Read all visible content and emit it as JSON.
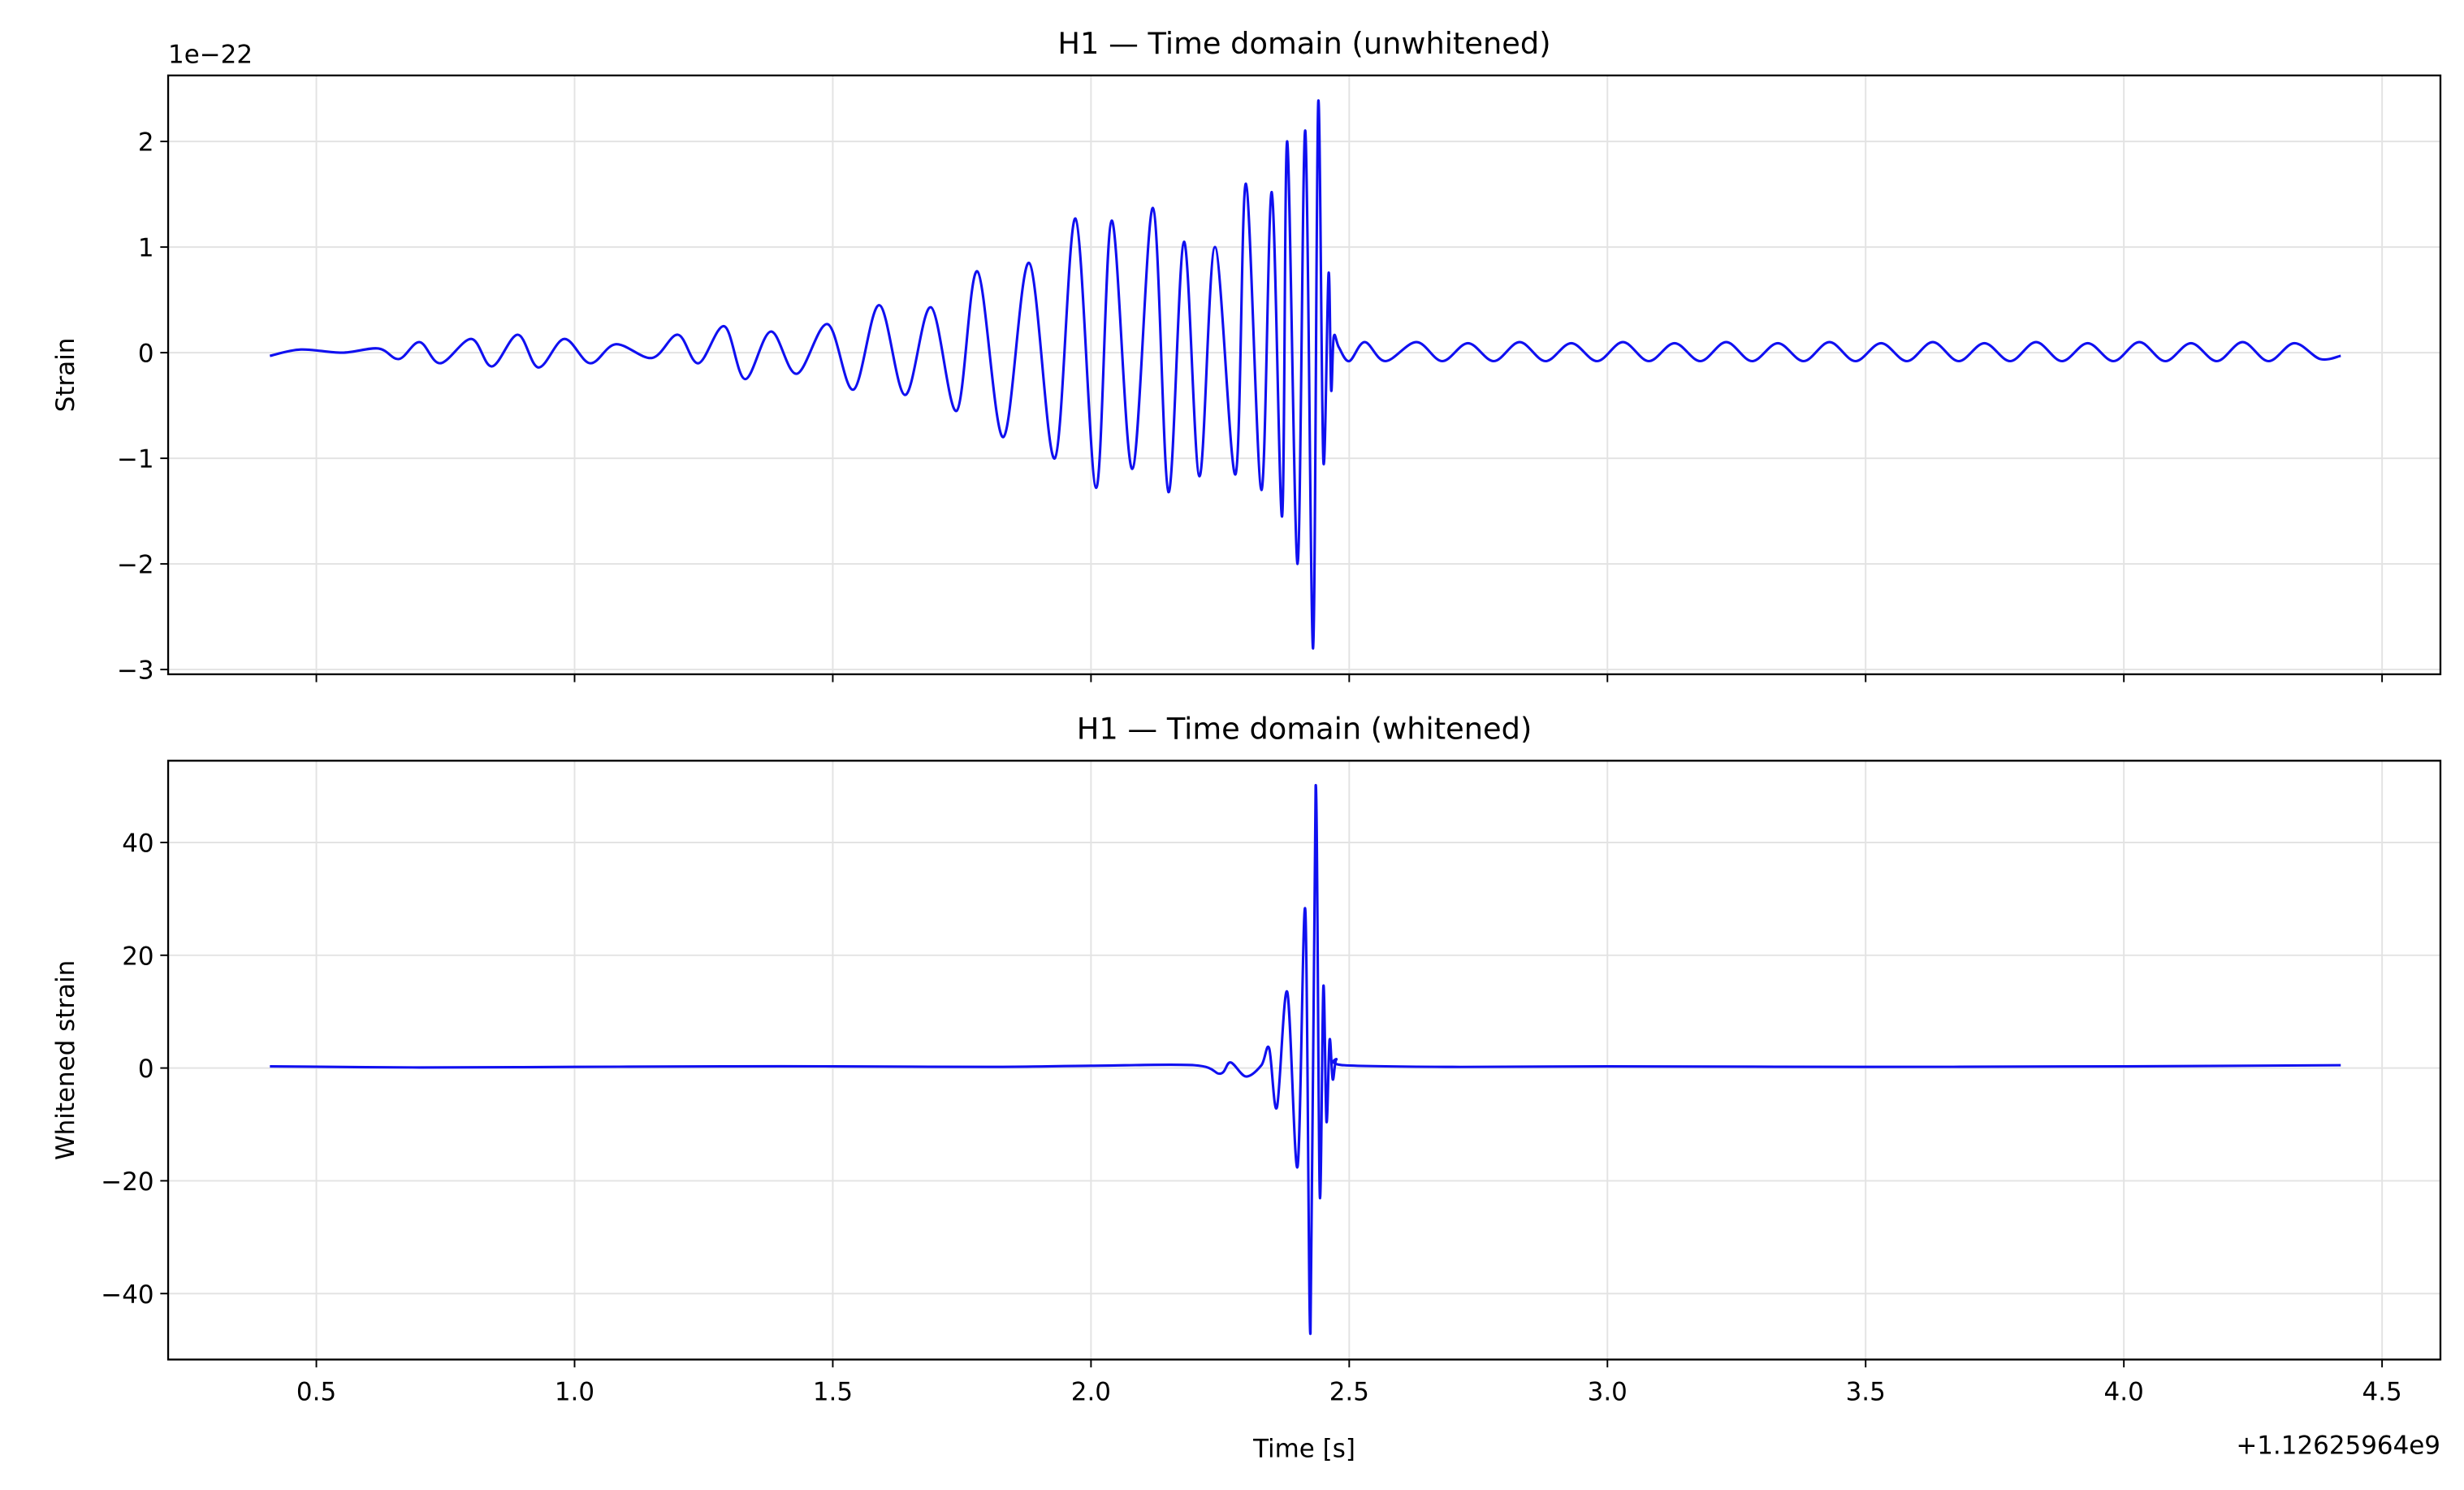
{
  "chart_data": [
    {
      "type": "line",
      "title": "H1 — Time domain (unwhitened)",
      "ylabel": "Strain",
      "y_offset_label": "1e−22",
      "grid": true,
      "xlim": [
        0.213,
        4.613
      ],
      "ylim": [
        -3.045,
        2.625
      ],
      "xticks": [
        0.5,
        1,
        1.5,
        2,
        2.5,
        3,
        3.5,
        4,
        4.5
      ],
      "yticks": [
        {
          "value": -3,
          "label": "−3"
        },
        {
          "value": -2,
          "label": "−2"
        },
        {
          "value": -1,
          "label": "−1"
        },
        0,
        1,
        2
      ],
      "x": [
        0.41,
        0.47,
        0.55,
        0.62,
        0.66,
        0.7,
        0.74,
        0.8,
        0.84,
        0.89,
        0.93,
        0.98,
        1.03,
        1.08,
        1.15,
        1.2,
        1.24,
        1.29,
        1.33,
        1.38,
        1.43,
        1.49,
        1.54,
        1.59,
        1.64,
        1.69,
        1.74,
        1.78,
        1.83,
        1.88,
        1.93,
        1.97,
        2.01,
        2.04,
        2.08,
        2.12,
        2.15,
        2.18,
        2.21,
        2.24,
        2.28,
        2.3,
        2.33,
        2.35,
        2.37,
        2.38,
        2.4,
        2.415,
        2.43,
        2.44,
        2.45,
        2.46,
        2.465,
        2.47,
        2.48,
        2.5,
        2.53,
        2.57,
        2.63,
        2.68,
        2.73,
        2.78,
        2.83,
        2.88,
        2.93,
        2.98,
        3.03,
        3.08,
        3.13,
        3.18,
        3.23,
        3.28,
        3.33,
        3.38,
        3.43,
        3.48,
        3.53,
        3.58,
        3.63,
        3.68,
        3.73,
        3.78,
        3.83,
        3.88,
        3.93,
        3.98,
        4.03,
        4.08,
        4.13,
        4.18,
        4.23,
        4.28,
        4.33,
        4.38,
        4.42
      ],
      "series": [
        {
          "name": "H1",
          "color": "#1010f0",
          "values": [
            -0.03,
            0.03,
            0.0,
            0.04,
            -0.06,
            0.1,
            -0.1,
            0.13,
            -0.13,
            0.17,
            -0.14,
            0.13,
            -0.1,
            0.08,
            -0.05,
            0.17,
            -0.1,
            0.25,
            -0.25,
            0.2,
            -0.2,
            0.27,
            -0.35,
            0.45,
            -0.4,
            0.43,
            -0.55,
            0.77,
            -0.8,
            0.85,
            -1.0,
            1.27,
            -1.28,
            1.25,
            -1.1,
            1.37,
            -1.32,
            1.05,
            -1.17,
            1.0,
            -1.15,
            1.6,
            -1.3,
            1.52,
            -1.55,
            2.0,
            -2.0,
            2.1,
            -2.8,
            2.37,
            -1.03,
            0.75,
            -0.35,
            0.15,
            0.05,
            -0.08,
            0.1,
            -0.08,
            0.1,
            -0.08,
            0.09,
            -0.08,
            0.1,
            -0.08,
            0.09,
            -0.08,
            0.1,
            -0.08,
            0.09,
            -0.08,
            0.1,
            -0.08,
            0.09,
            -0.08,
            0.1,
            -0.08,
            0.09,
            -0.08,
            0.1,
            -0.08,
            0.09,
            -0.08,
            0.1,
            -0.08,
            0.09,
            -0.08,
            0.1,
            -0.08,
            0.09,
            -0.08,
            0.1,
            -0.08,
            0.09,
            -0.06,
            -0.03
          ]
        }
      ]
    },
    {
      "type": "line",
      "title": "H1 — Time domain (whitened)",
      "ylabel": "Whitened strain",
      "xlabel": "Time [s]",
      "x_offset_label": "+1.12625964e9",
      "grid": true,
      "xlim": [
        0.213,
        4.613
      ],
      "ylim": [
        -51.7,
        54.5
      ],
      "xticks": [
        0.5,
        {
          "value": 1,
          "label": "1.0"
        },
        1.5,
        {
          "value": 2,
          "label": "2.0"
        },
        2.5,
        {
          "value": 3,
          "label": "3.0"
        },
        3.5,
        {
          "value": 4,
          "label": "4.0"
        },
        4.5
      ],
      "yticks": [
        {
          "value": -40,
          "label": "−40"
        },
        {
          "value": -20,
          "label": "−20"
        },
        0,
        20,
        40
      ],
      "x": [
        0.41,
        0.7,
        1.0,
        1.3,
        1.5,
        1.8,
        2.0,
        2.2,
        2.25,
        2.27,
        2.3,
        2.33,
        2.345,
        2.36,
        2.38,
        2.4,
        2.415,
        2.425,
        2.435,
        2.443,
        2.45,
        2.456,
        2.462,
        2.468,
        2.475,
        2.49,
        2.7,
        3.0,
        3.5,
        4.0,
        4.42
      ],
      "series": [
        {
          "name": "H1 whitened",
          "color": "#1010f0",
          "values": [
            0.3,
            0.1,
            0.2,
            0.3,
            0.3,
            0.2,
            0.4,
            0.5,
            -1,
            1,
            -1.5,
            0.5,
            3.5,
            -7,
            13.5,
            -17.5,
            28,
            -47,
            50,
            -22.5,
            14.5,
            -9.5,
            5,
            -2,
            1.5,
            0.5,
            0.2,
            0.3,
            0.2,
            0.3,
            0.5
          ]
        }
      ]
    }
  ]
}
